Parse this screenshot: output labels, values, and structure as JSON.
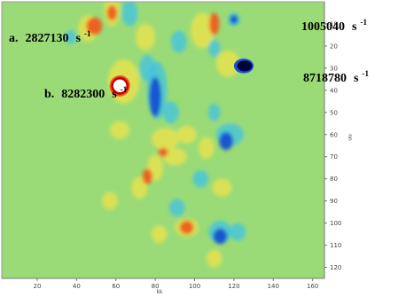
{
  "chart_data": {
    "type": "heatmap",
    "xlabel": "kk",
    "ylabel": "nn",
    "xlim": [
      2,
      166
    ],
    "ylim": [
      0,
      125
    ],
    "x_ticks": [
      20,
      40,
      60,
      80,
      100,
      120,
      140,
      160
    ],
    "y_ticks": [
      10,
      20,
      30,
      40,
      50,
      60,
      70,
      80,
      90,
      100,
      110,
      120
    ],
    "y_tick_labels": [
      "10",
      "20",
      "30",
      "40",
      "50",
      "60",
      "70",
      "80",
      "90",
      "100",
      "110",
      "120"
    ],
    "colors": {
      "background": "#9adb77",
      "positive_mid": "#f0e34a",
      "positive_high": "#f05a1c",
      "positive_peak": "#c80000",
      "negative_mid": "#3cc2e6",
      "negative_high": "#1450d2",
      "negative_peak": "#00003c"
    },
    "annotations": [
      {
        "id": "a",
        "prefix": "a.",
        "value": "2827130",
        "unit": "s",
        "exponent": "-1",
        "x": 49,
        "y": 11
      },
      {
        "id": "b",
        "prefix": "b.",
        "value": "8282300",
        "unit": "s",
        "exponent": "-1",
        "x": 62,
        "y": 38
      },
      {
        "id": "c",
        "prefix": "",
        "value": "1005040",
        "unit": "s",
        "exponent": "-1",
        "x": 120,
        "y": 8
      },
      {
        "id": "d",
        "prefix": "",
        "value": "8718780",
        "unit": "s",
        "exponent": "-1",
        "x": 125,
        "y": 29
      }
    ]
  }
}
